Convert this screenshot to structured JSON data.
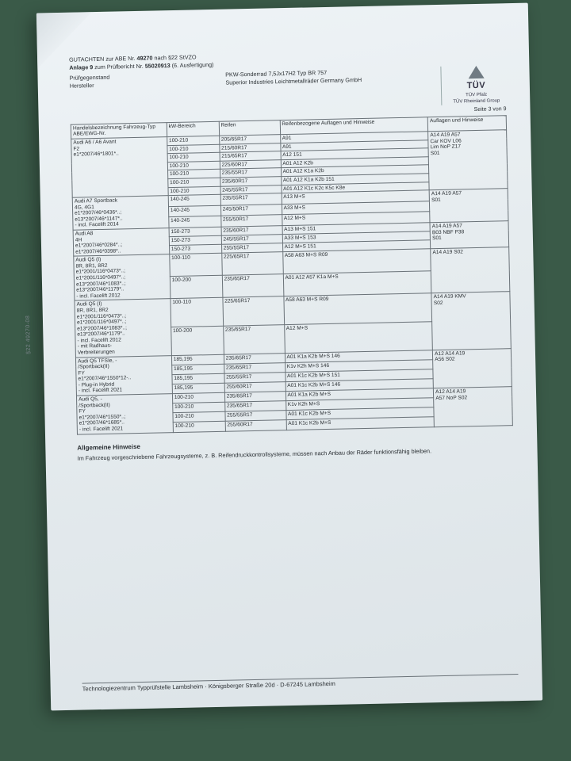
{
  "header": {
    "line1_a": "GUTACHTEN zur ABE Nr. ",
    "abe_nr": "49270",
    "line1_b": " nach §22 StVZO",
    "line2_a": "Anlage 9",
    "line2_b": " zum Prüfbericht Nr. ",
    "pruef_nr": "55020913",
    "line2_c": " (6. Ausfertigung)",
    "left_a": "Prüfgegenstand",
    "left_b": "Hersteller",
    "mid_a": "PKW-Sonderrad 7,5Jx17H2 Typ BR 757",
    "mid_b": "Superior Industries Leichtmetallräder Germany GmbH",
    "tuv": "TÜV",
    "tuv_sub1": "TÜV Pfalz",
    "tuv_sub2": "TÜV Rheinland Group",
    "page": "Seite 3 von 9"
  },
  "side_print": "§22  49270-08",
  "columns": {
    "c1": "Handelsbezeichnung\nFahrzeug-Typ\nABE/EWG-Nr.",
    "c2": "kW-Bereich",
    "c3": "Reifen",
    "c4": "Reifenbezogene Auflagen und Hinweise",
    "c5": "Auflagen und Hinweise"
  },
  "groups": [
    {
      "vehicle": "Audi A6 / A6 Avant\nF2\ne1*2007/46*1801*..",
      "aufl": "A14 A19 A57\nCar KOV L06\nLim NoP Z17\nS01",
      "rows": [
        {
          "kw": "100-210",
          "reifen": "205/65R17",
          "ra": "A91"
        },
        {
          "kw": "100-210",
          "reifen": "215/60R17",
          "ra": "A91"
        },
        {
          "kw": "100-210",
          "reifen": "215/65R17",
          "ra": "A12 151"
        },
        {
          "kw": "100-210",
          "reifen": "225/60R17",
          "ra": "A01 A12 K2b"
        },
        {
          "kw": "100-210",
          "reifen": "235/55R17",
          "ra": "A01 A12 K1a K2b"
        },
        {
          "kw": "100-210",
          "reifen": "235/60R17",
          "ra": "A01 A12 K1a K2b 151"
        },
        {
          "kw": "100-210",
          "reifen": "245/55R17",
          "ra": "A01 A12 K1c K2c K5c K8e"
        }
      ]
    },
    {
      "vehicle": "Audi A7 Sportback\n4G, 4G1\ne1*2007/46*0436*..;\ne13*2007/46*1147*..\n- incl. Facelift 2014",
      "aufl": "A14 A19 A57\nS01",
      "rows": [
        {
          "kw": "140-245",
          "reifen": "235/55R17",
          "ra": "A13 M+S"
        },
        {
          "kw": "140-245",
          "reifen": "245/50R17",
          "ra": "A33 M+S"
        },
        {
          "kw": "140-245",
          "reifen": "255/50R17",
          "ra": "A12 M+S"
        }
      ]
    },
    {
      "vehicle": "Audi A8\n4H\ne1*2007/46*0284*..;\ne1*2007/46*0398*..",
      "aufl": "A14 A19 A57\nB03 NBF P38\nS01",
      "rows": [
        {
          "kw": "150-273",
          "reifen": "235/60R17",
          "ra": "A13 M+S 151"
        },
        {
          "kw": "150-273",
          "reifen": "245/55R17",
          "ra": "A33 M+S 153"
        },
        {
          "kw": "150-273",
          "reifen": "255/55R17",
          "ra": "A12 M+S 151"
        }
      ]
    },
    {
      "vehicle": "Audi Q5 (I)\n8R, 8R1, 8R2\ne1*2001/116*0473*..;\ne1*2001/116*0497*..;\ne13*2007/46*1083*..;\ne13*2007/46*1179*..\n- incl. Facelift 2012",
      "aufl": "A14 A19 S02",
      "rows": [
        {
          "kw": "100-110",
          "reifen": "225/65R17",
          "ra": "A58 A63 M+S R09"
        },
        {
          "kw": "100-200",
          "reifen": "235/65R17",
          "ra": "A01 A12 A57 K1a M+S"
        }
      ]
    },
    {
      "vehicle": "Audi Q5 (I)\n8R, 8R1, 8R2\ne1*2001/116*0473*..;\ne1*2001/116*0497*..;\ne13*2007/46*1083*..;\ne13*2007/46*1179*..\n- incl. Facelift 2012\n- mit Radhaus-\n  Verbreiterungen",
      "aufl": "A14 A19 KMV\nS02",
      "rows": [
        {
          "kw": "100-110",
          "reifen": "225/65R17",
          "ra": "A58 A63 M+S R09"
        },
        {
          "kw": "100-200",
          "reifen": "235/65R17",
          "ra": "A12 M+S"
        }
      ]
    },
    {
      "vehicle": "Audi Q5 TFSIe, -\n/Sportback(II)\nFY\ne1*2007/46*1550*12-..\n- Plug-in Hybrid\n- incl. Facelift 2021",
      "aufl": "A12 A14 A19\nA56 S02",
      "rows": [
        {
          "kw": "185,195",
          "reifen": "235/65R17",
          "ra": "A01 K1a K2b M+S 146"
        },
        {
          "kw": "185,195",
          "reifen": "235/65R17",
          "ra": "K1v K2h M+S 146"
        },
        {
          "kw": "185,195",
          "reifen": "255/55R17",
          "ra": "A01 K1c K2b M+S 151"
        },
        {
          "kw": "185,195",
          "reifen": "255/60R17",
          "ra": "A01 K1c K2b M+S 146"
        }
      ]
    },
    {
      "vehicle": "Audi Q5, -\n/Sportback(II)\nFY\ne1*2007/46*1550*..;\ne1*2007/46*1685*..\n- incl. Facelift 2021",
      "aufl": "A12 A14 A19\nA57 NoP S02",
      "rows": [
        {
          "kw": "100-210",
          "reifen": "235/65R17",
          "ra": "A01 K1a K2b M+S"
        },
        {
          "kw": "100-210",
          "reifen": "235/65R17",
          "ra": "K1v K2h M+S"
        },
        {
          "kw": "100-210",
          "reifen": "255/55R17",
          "ra": "A01 K1c K2b M+S"
        },
        {
          "kw": "100-210",
          "reifen": "255/60R17",
          "ra": "A01 K1c K2b M+S"
        }
      ]
    }
  ],
  "notes": {
    "title": "Allgemeine Hinweise",
    "body": "Im Fahrzeug vorgeschriebene Fahrzeugsysteme, z. B. Reifendruckkontrollsysteme, müssen nach Anbau der Räder funktionsfähig bleiben."
  },
  "footer": "Technologiezentrum Typprüfstelle Lambsheim · Königsberger Straße 20d · D-67245 Lambsheim"
}
